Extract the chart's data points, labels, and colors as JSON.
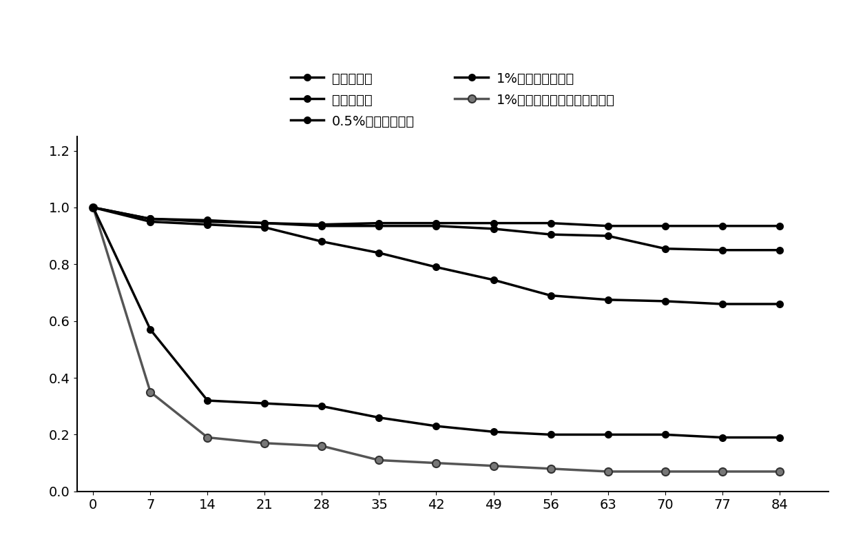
{
  "x": [
    0,
    7,
    14,
    21,
    28,
    35,
    42,
    49,
    56,
    63,
    70,
    77,
    84
  ],
  "series": {
    "s1": [
      1.0,
      0.96,
      0.95,
      0.945,
      0.94,
      0.945,
      0.945,
      0.945,
      0.945,
      0.935,
      0.935,
      0.935,
      0.935
    ],
    "s2": [
      1.0,
      0.96,
      0.955,
      0.945,
      0.935,
      0.935,
      0.935,
      0.925,
      0.905,
      0.9,
      0.855,
      0.85,
      0.85
    ],
    "s3": [
      1.0,
      0.95,
      0.94,
      0.93,
      0.88,
      0.84,
      0.79,
      0.745,
      0.69,
      0.675,
      0.67,
      0.66,
      0.66
    ],
    "s4": [
      1.0,
      0.57,
      0.32,
      0.31,
      0.3,
      0.26,
      0.23,
      0.21,
      0.2,
      0.2,
      0.2,
      0.19,
      0.19
    ],
    "s5": [
      1.0,
      0.35,
      0.19,
      0.17,
      0.16,
      0.11,
      0.1,
      0.09,
      0.08,
      0.07,
      0.07,
      0.07,
      0.07
    ]
  },
  "labels": {
    "s1": "灭菌实验组",
    "s2": "空白试验组",
    "s3": "0.5%生物炭实验组",
    "s4": "1%复合材料实验组",
    "s5": "1%复合材料联合微生物实验组"
  },
  "ylim": [
    0,
    1.25
  ],
  "xlim": [
    -2,
    90
  ],
  "yticks": [
    0,
    0.2,
    0.4,
    0.6,
    0.8,
    1.0,
    1.2
  ],
  "xticks": [
    0,
    7,
    14,
    21,
    28,
    35,
    42,
    49,
    56,
    63,
    70,
    77,
    84
  ],
  "background_color": "#ffffff",
  "font_size": 14,
  "tick_font_size": 14,
  "linewidth": 2.5,
  "markersize": 7
}
